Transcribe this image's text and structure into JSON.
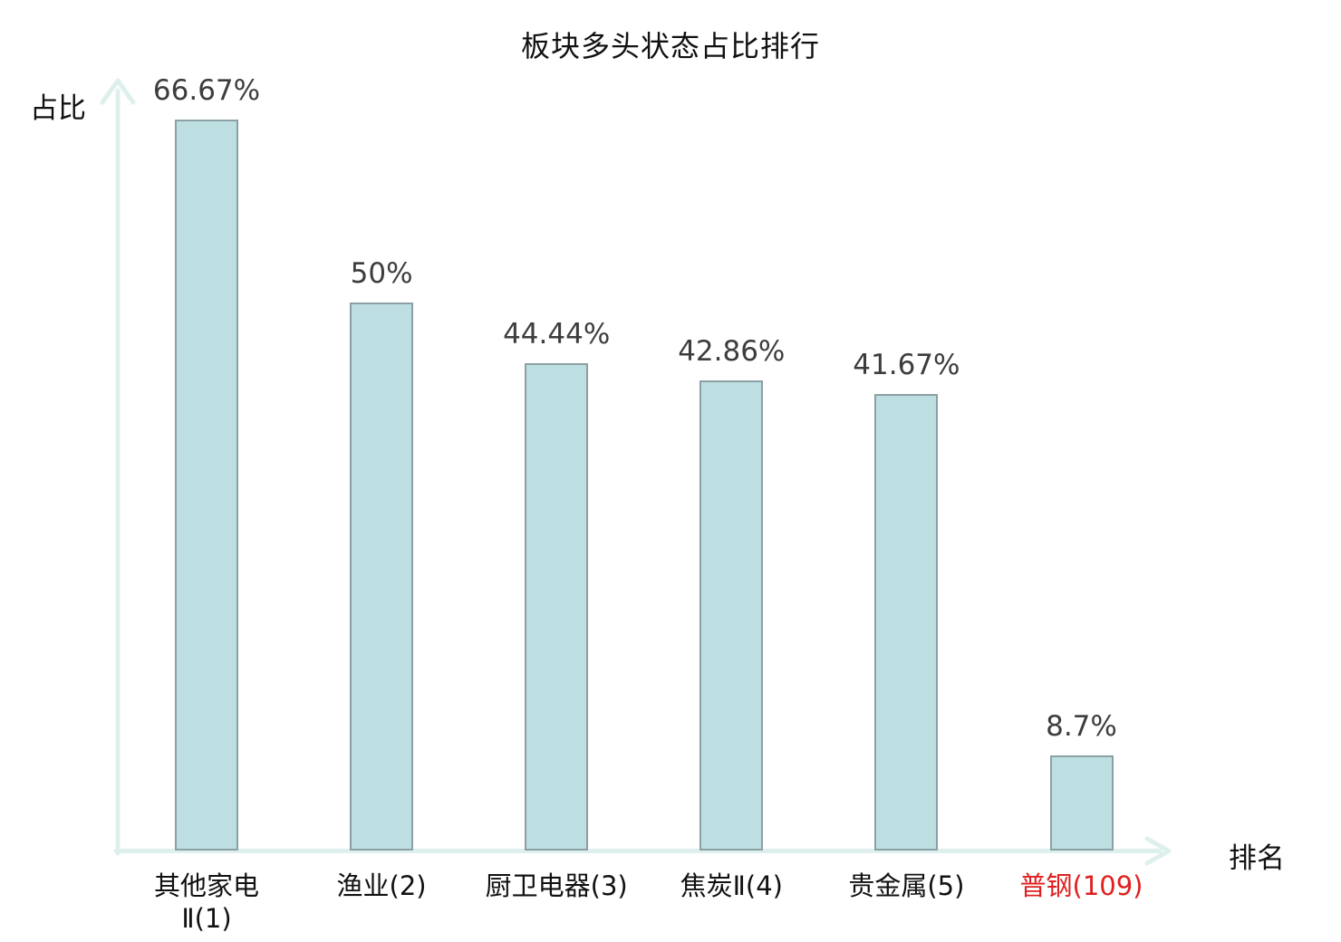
{
  "chart_data": {
    "type": "bar",
    "title": "板块多头状态占比排行",
    "xlabel": "排名",
    "ylabel": "占比",
    "categories": [
      "其他家电Ⅱ(1)",
      "渔业(2)",
      "厨卫电器(3)",
      "焦炭Ⅱ(4)",
      "贵金属(5)",
      "普钢(109)"
    ],
    "category_lines": [
      [
        "其他家电",
        "Ⅱ(1)"
      ],
      [
        "渔业(2)"
      ],
      [
        "厨卫电器(3)"
      ],
      [
        "焦炭Ⅱ(4)"
      ],
      [
        "贵金属(5)"
      ],
      [
        "普钢(109)"
      ]
    ],
    "values": [
      66.67,
      50,
      44.44,
      42.86,
      41.67,
      8.7
    ],
    "value_labels": [
      "66.67%",
      "50%",
      "44.44%",
      "42.86%",
      "41.67%",
      "8.7%"
    ],
    "highlight_index": 5,
    "ylim": [
      0,
      70
    ],
    "grid": false,
    "legend": "none",
    "colors": {
      "background": "#ffffff",
      "bar_fill": "#bedfe2",
      "bar_border": "#8ba0a4",
      "axis": "#def0ed",
      "value_text": "#3d3d3d",
      "category_text": "#111111",
      "highlight_text": "#e02020",
      "title_text": "#111111"
    }
  }
}
